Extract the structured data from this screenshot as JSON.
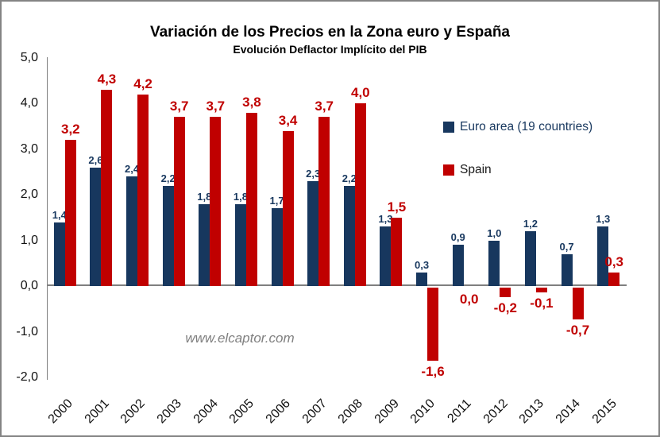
{
  "chart_data": {
    "type": "bar",
    "title": "Variación de los Precios en la Zona euro y España",
    "subtitle": "Evolución Deflactor Implícito del PIB",
    "categories": [
      "2000",
      "2001",
      "2002",
      "2003",
      "2004",
      "2005",
      "2006",
      "2007",
      "2008",
      "2009",
      "2010",
      "2011",
      "2012",
      "2013",
      "2014",
      "2015"
    ],
    "series": [
      {
        "name": "Euro area (19 countries)",
        "color": "#17375E",
        "values": [
          1.4,
          2.6,
          2.4,
          2.2,
          1.8,
          1.8,
          1.7,
          2.3,
          2.2,
          1.3,
          0.3,
          0.9,
          1.0,
          1.2,
          0.7,
          1.3
        ]
      },
      {
        "name": "Spain",
        "color": "#C00000",
        "values": [
          3.2,
          4.3,
          4.2,
          3.7,
          3.7,
          3.8,
          3.4,
          3.7,
          4.0,
          1.5,
          -1.6,
          0.0,
          -0.2,
          -0.1,
          -0.7,
          0.3
        ]
      }
    ],
    "ylim": [
      -2.0,
      5.0
    ],
    "ytick_step": 1.0,
    "ytick_labels": [
      "5,0",
      "4,0",
      "3,0",
      "2,0",
      "1,0",
      "0,0",
      "-1,0",
      "-2,0"
    ],
    "decimal_separator": ",",
    "grid": false,
    "data_labels": true,
    "legend_position": "middle-right",
    "xlabel": "",
    "ylabel": ""
  },
  "legend": {
    "text_colors": [
      "#17375E",
      "#1A1A1A"
    ]
  },
  "watermark": {
    "text": "www.elcaptor.com"
  },
  "colors": {
    "axis": "#7F7F7F",
    "frame_border": "#848484",
    "background": "#FFFFFF"
  }
}
